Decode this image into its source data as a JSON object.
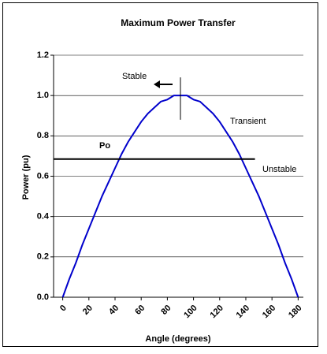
{
  "chart_data": {
    "type": "line",
    "title": "Maximum Power Transfer",
    "x_label": "Angle (degrees)",
    "y_label": "Power (pu)",
    "x": [
      0,
      5,
      10,
      15,
      20,
      25,
      30,
      35,
      40,
      45,
      50,
      55,
      60,
      65,
      70,
      75,
      80,
      85,
      90,
      95,
      100,
      105,
      110,
      115,
      120,
      125,
      130,
      135,
      140,
      145,
      150,
      155,
      160,
      165,
      170,
      175,
      180
    ],
    "series": [
      {
        "name": "Power",
        "color": "#0000cc",
        "values": [
          0,
          0.09,
          0.17,
          0.26,
          0.34,
          0.42,
          0.5,
          0.57,
          0.64,
          0.71,
          0.77,
          0.82,
          0.87,
          0.91,
          0.94,
          0.97,
          0.98,
          1.0,
          1.0,
          1.0,
          0.98,
          0.97,
          0.94,
          0.91,
          0.87,
          0.82,
          0.77,
          0.71,
          0.64,
          0.57,
          0.5,
          0.42,
          0.34,
          0.26,
          0.17,
          0.09,
          0
        ]
      }
    ],
    "xlim": [
      -7,
      184
    ],
    "ylim": [
      0,
      1.2
    ],
    "xticks": [
      0,
      20,
      40,
      60,
      80,
      100,
      120,
      140,
      160,
      180
    ],
    "yticks": [
      {
        "value": 0,
        "label": "0.0"
      },
      0.2,
      0.4,
      0.6,
      0.8,
      {
        "value": 1,
        "label": "1.0"
      },
      1.2
    ],
    "grid": true,
    "po_line": {
      "label": "Po",
      "value": 0.685,
      "x_end": 147
    },
    "marker_line": {
      "x": 90,
      "y_range": [
        0.88,
        1.09
      ]
    },
    "annotations": [
      "Stable",
      "Transient",
      "Unstable"
    ]
  }
}
